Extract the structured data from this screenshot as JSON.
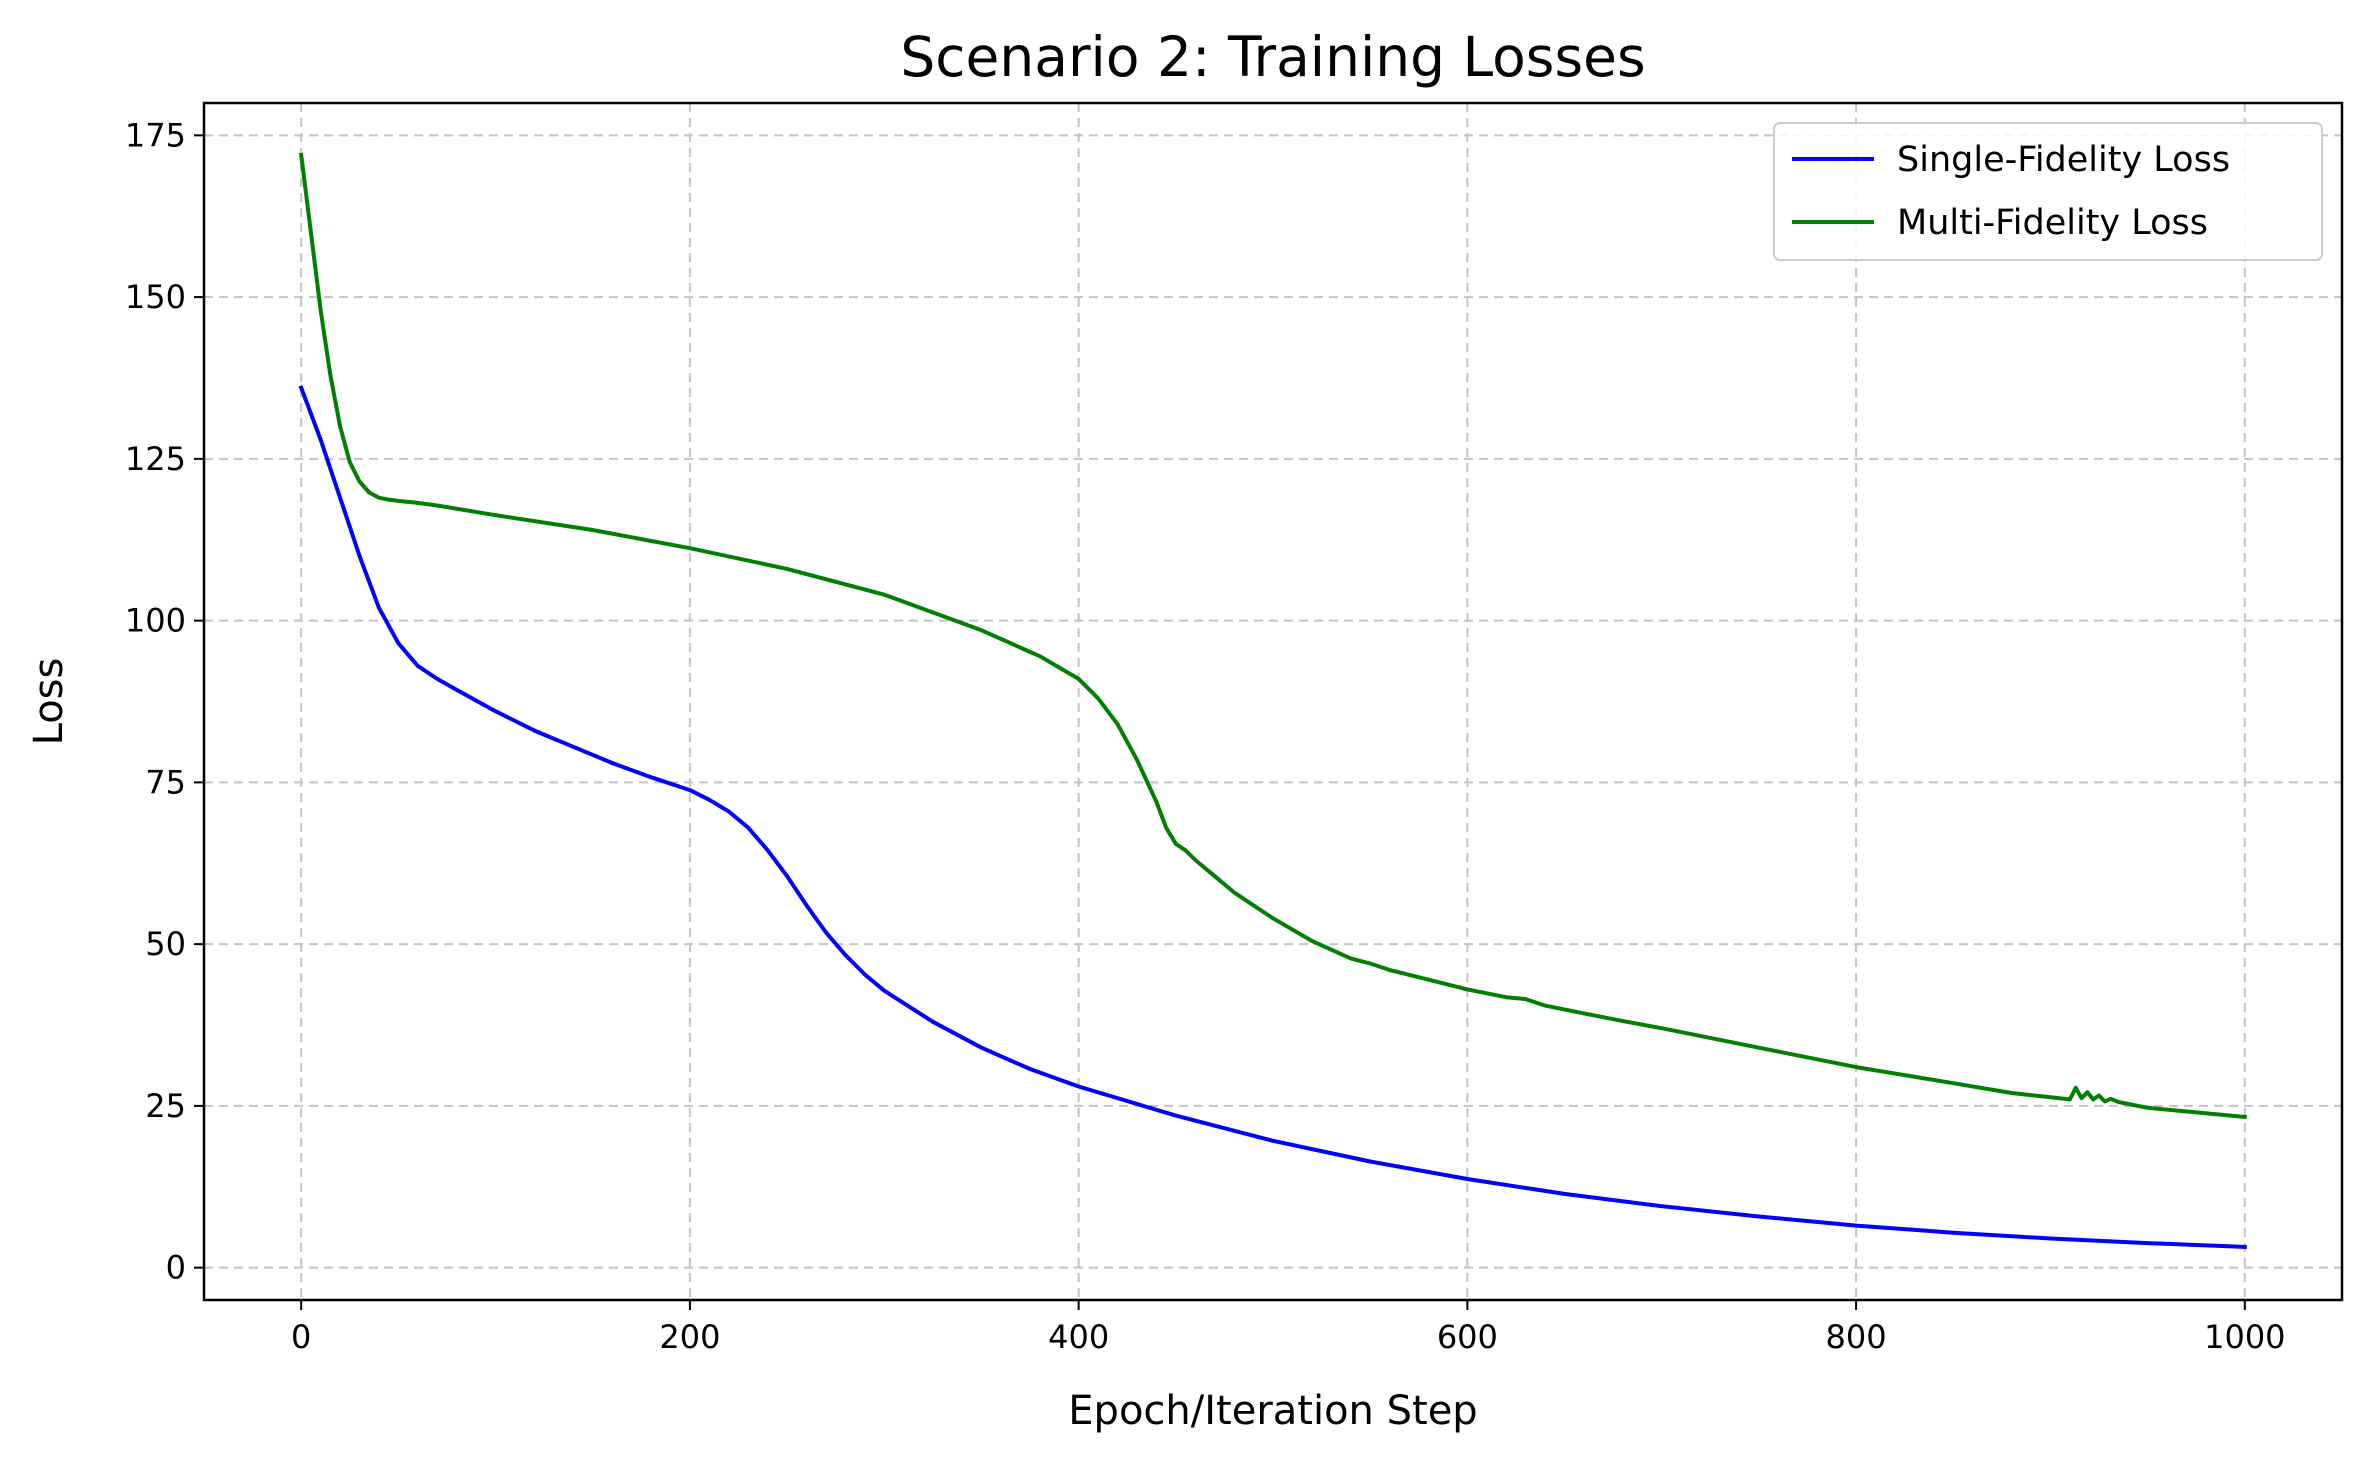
{
  "chart_data": {
    "type": "line",
    "title": "Scenario 2: Training Losses",
    "xlabel": "Epoch/Iteration Step",
    "ylabel": "Loss",
    "xlim": [
      -50,
      1050
    ],
    "ylim": [
      -5,
      180
    ],
    "xticks": [
      0,
      200,
      400,
      600,
      800,
      1000
    ],
    "yticks": [
      0,
      25,
      50,
      75,
      100,
      125,
      150,
      175
    ],
    "grid": true,
    "legend_position": "top-right",
    "series": [
      {
        "name": "Single-Fidelity Loss",
        "color": "#0000ff",
        "x": [
          0,
          10,
          20,
          30,
          40,
          50,
          60,
          70,
          80,
          100,
          120,
          140,
          160,
          180,
          200,
          210,
          220,
          230,
          240,
          250,
          260,
          270,
          280,
          290,
          300,
          325,
          350,
          375,
          400,
          450,
          500,
          550,
          600,
          650,
          700,
          750,
          800,
          850,
          900,
          950,
          1000
        ],
        "y": [
          136,
          128,
          119,
          110,
          102,
          96.5,
          93,
          91,
          89.3,
          86,
          83,
          80.5,
          78,
          75.8,
          73.8,
          72.3,
          70.5,
          68,
          64.5,
          60.5,
          56,
          51.8,
          48.3,
          45.3,
          42.8,
          38,
          34,
          30.7,
          28,
          23.5,
          19.6,
          16.4,
          13.7,
          11.4,
          9.5,
          7.9,
          6.5,
          5.4,
          4.5,
          3.8,
          3.2
        ]
      },
      {
        "name": "Multi-Fidelity Loss",
        "color": "#008000",
        "x": [
          0,
          5,
          10,
          15,
          20,
          25,
          30,
          35,
          40,
          45,
          50,
          60,
          70,
          100,
          150,
          200,
          250,
          300,
          350,
          380,
          400,
          410,
          420,
          430,
          440,
          445,
          450,
          455,
          460,
          470,
          480,
          500,
          520,
          540,
          550,
          560,
          580,
          600,
          620,
          630,
          640,
          660,
          680,
          700,
          750,
          800,
          850,
          880,
          910,
          913,
          916,
          919,
          922,
          925,
          928,
          931,
          935,
          950,
          1000
        ],
        "y": [
          172,
          160,
          148,
          138,
          130,
          124.5,
          121.5,
          119.8,
          119,
          118.7,
          118.5,
          118.2,
          117.8,
          116.3,
          114,
          111.2,
          108,
          104,
          98.5,
          94.5,
          91,
          88,
          84,
          78.5,
          72,
          68,
          65.5,
          64.5,
          63,
          60.5,
          58,
          54,
          50.5,
          47.8,
          47,
          46,
          44.5,
          43,
          41.8,
          41.5,
          40.5,
          39.3,
          38.1,
          37,
          34,
          31,
          28.5,
          27,
          26,
          27.8,
          26.2,
          27.1,
          26,
          26.6,
          25.7,
          26.1,
          25.6,
          24.7,
          23.3
        ]
      }
    ]
  }
}
